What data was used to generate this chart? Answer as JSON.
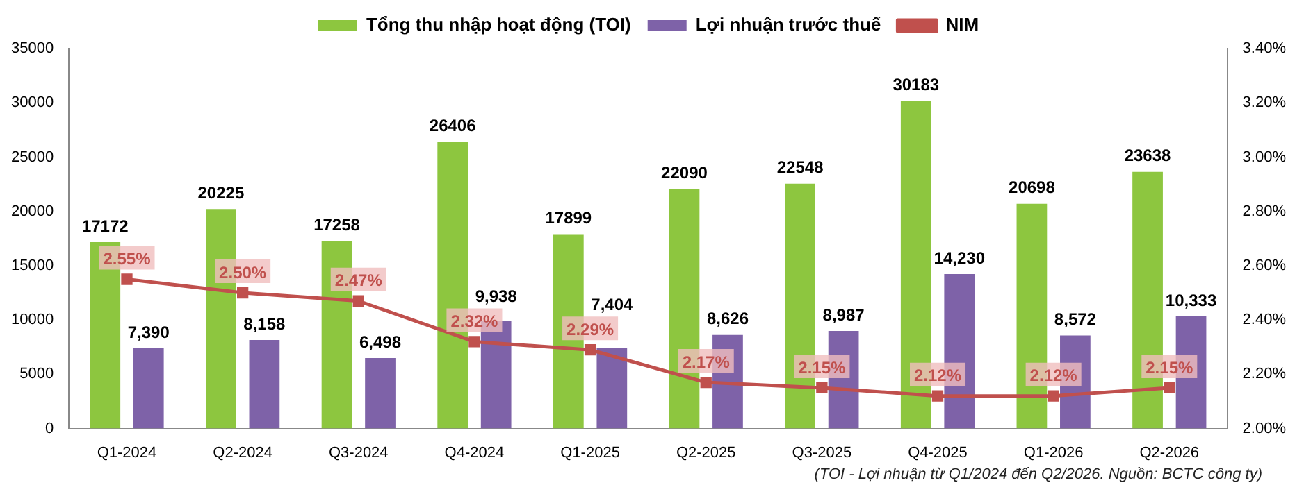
{
  "chart_data": {
    "type": "bar",
    "categories": [
      "Q1-2024",
      "Q2-2024",
      "Q3-2024",
      "Q4-2024",
      "Q1-2025",
      "Q2-2025",
      "Q3-2025",
      "Q4-2025",
      "Q1-2026",
      "Q2-2026"
    ],
    "series": [
      {
        "name": "Tổng thu nhập hoạt động (TOI)",
        "color": "#8dc63f",
        "values": [
          17172,
          20225,
          17258,
          26406,
          17899,
          22090,
          22548,
          30183,
          20698,
          23638
        ],
        "value_labels": [
          "17172",
          "20225",
          "17258",
          "26406",
          "17899",
          "22090",
          "22548",
          "30183",
          "20698",
          "23638"
        ]
      },
      {
        "name": "Lợi nhuận trước thuế",
        "color": "#7e62a8",
        "values": [
          7390,
          8158,
          6498,
          9938,
          7404,
          8626,
          8987,
          14230,
          8572,
          10333
        ],
        "value_labels": [
          "7,390",
          "8,158",
          "6,498",
          "9,938",
          "7,404",
          "8,626",
          "8,987",
          "14,230",
          "8,572",
          "10,333"
        ]
      },
      {
        "name": "NIM",
        "type": "line",
        "axis": "y2",
        "color": "#c0504d",
        "marker": "square",
        "values": [
          2.55,
          2.5,
          2.47,
          2.32,
          2.29,
          2.17,
          2.15,
          2.12,
          2.12,
          2.15
        ],
        "value_labels": [
          "2.55%",
          "2.50%",
          "2.47%",
          "2.32%",
          "2.29%",
          "2.17%",
          "2.15%",
          "2.12%",
          "2.12%",
          "2.15%"
        ]
      }
    ],
    "ylim": [
      0,
      35000
    ],
    "yticks": [
      0,
      5000,
      10000,
      15000,
      20000,
      25000,
      30000,
      35000
    ],
    "y2lim": [
      2.0,
      3.4
    ],
    "y2ticks": [
      {
        "value": 2.0,
        "label": "2.00%"
      },
      {
        "value": 2.2,
        "label": "2.20%"
      },
      {
        "value": 2.4,
        "label": "2.40%"
      },
      {
        "value": 2.6,
        "label": "2.60%"
      },
      {
        "value": 2.8,
        "label": "2.80%"
      },
      {
        "value": 3.0,
        "label": "3.00%"
      },
      {
        "value": 3.2,
        "label": "3.20%"
      },
      {
        "value": 3.4,
        "label": "3.40%"
      }
    ],
    "grid": false,
    "legend": "top",
    "annotations": [
      "(TOI - Lợi nhuận từ Q1/2024 đến Q2/2026. Nguồn: BCTC công ty)"
    ]
  }
}
